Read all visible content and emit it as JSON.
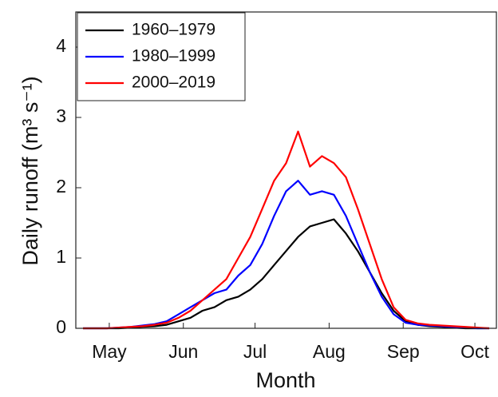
{
  "chart_data": {
    "type": "line",
    "xlabel": "Month",
    "ylabel": "Daily runoff (m³ s⁻¹)",
    "x": [
      110,
      115,
      120,
      125,
      130,
      135,
      140,
      145,
      150,
      155,
      160,
      165,
      170,
      175,
      180,
      185,
      190,
      195,
      200,
      205,
      210,
      215,
      220,
      225,
      230,
      235,
      240,
      245,
      250,
      255,
      260,
      265,
      270,
      275,
      280
    ],
    "series": [
      {
        "name": "1960–1979",
        "color": "#000000",
        "values": [
          0,
          0,
          0,
          0,
          0.01,
          0.02,
          0.03,
          0.05,
          0.1,
          0.15,
          0.25,
          0.3,
          0.4,
          0.45,
          0.55,
          0.7,
          0.9,
          1.1,
          1.3,
          1.45,
          1.5,
          1.55,
          1.35,
          1.1,
          0.8,
          0.5,
          0.25,
          0.1,
          0.05,
          0.03,
          0.02,
          0.01,
          0,
          0,
          0
        ]
      },
      {
        "name": "1980–1999",
        "color": "#0000ff",
        "values": [
          0,
          0,
          0,
          0.01,
          0.02,
          0.04,
          0.06,
          0.1,
          0.2,
          0.3,
          0.4,
          0.5,
          0.55,
          0.75,
          0.9,
          1.2,
          1.6,
          1.95,
          2.1,
          1.9,
          1.95,
          1.9,
          1.6,
          1.2,
          0.8,
          0.45,
          0.2,
          0.08,
          0.05,
          0.04,
          0.03,
          0.02,
          0.01,
          0,
          0
        ]
      },
      {
        "name": "2000–2019",
        "color": "#ff0000",
        "values": [
          0,
          0,
          0,
          0.01,
          0.02,
          0.03,
          0.05,
          0.08,
          0.15,
          0.25,
          0.4,
          0.55,
          0.7,
          1.0,
          1.3,
          1.7,
          2.1,
          2.35,
          2.8,
          2.3,
          2.45,
          2.35,
          2.15,
          1.7,
          1.2,
          0.7,
          0.3,
          0.12,
          0.07,
          0.05,
          0.04,
          0.03,
          0.02,
          0.01,
          0
        ]
      }
    ],
    "xlim": [
      107,
      283
    ],
    "xticks": [
      {
        "value": 121,
        "label": "May"
      },
      {
        "value": 152,
        "label": "Jun"
      },
      {
        "value": 182,
        "label": "Jul"
      },
      {
        "value": 213,
        "label": "Aug"
      },
      {
        "value": 244,
        "label": "Sep"
      },
      {
        "value": 274,
        "label": "Oct"
      }
    ],
    "ylim": [
      0,
      4.5
    ],
    "yticks": [
      0,
      1,
      2,
      3,
      4
    ],
    "grid": false,
    "legend": "upper-left"
  }
}
